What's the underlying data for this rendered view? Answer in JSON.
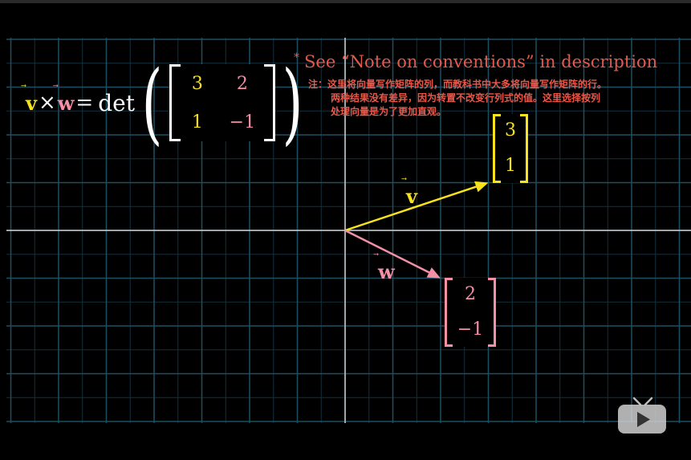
{
  "formula": {
    "v_label": "v",
    "w_label": "w",
    "vec_arrow": "⃗",
    "cross": "×",
    "equals": "=",
    "det": "det",
    "matrix": [
      [
        "3",
        "2"
      ],
      [
        "1",
        "−1"
      ]
    ]
  },
  "note": {
    "marker": "*",
    "title": "See “Note on conventions” in description",
    "lines": [
      "注：这里将向量写作矩阵的列，而教科书中大多将向量写作矩阵的行。",
      "两种结果没有差异，因为转置不改变行列式的值。这里选择按列",
      "处理向量是为了更加直观。"
    ]
  },
  "vectors": {
    "v": {
      "label": "v",
      "components": [
        "3",
        "1"
      ],
      "x": 3,
      "y": 1
    },
    "w": {
      "label": "w",
      "components": [
        "2",
        "−1"
      ],
      "x": 2,
      "y": -1
    }
  },
  "colors": {
    "v": "#f7e21b",
    "w": "#f48fa6",
    "note": "#e8584a",
    "grid": "#1d4f63",
    "grid_minor": "#12303d",
    "axis": "#cfcfcf"
  },
  "player": {
    "icon": "play-icon"
  }
}
